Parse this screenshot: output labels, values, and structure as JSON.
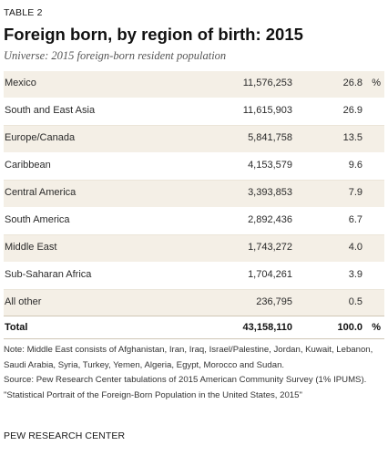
{
  "table_label": "TABLE 2",
  "title": "Foreign born, by region of birth: 2015",
  "subtitle": "Universe: 2015 foreign-born resident population",
  "percent_symbol": "%",
  "rows": [
    {
      "region": "Mexico",
      "count": "11,576,253",
      "percent": "26.8"
    },
    {
      "region": "South and East Asia",
      "count": "11,615,903",
      "percent": "26.9"
    },
    {
      "region": "Europe/Canada",
      "count": "5,841,758",
      "percent": "13.5"
    },
    {
      "region": "Caribbean",
      "count": "4,153,579",
      "percent": "9.6"
    },
    {
      "region": "Central America",
      "count": "3,393,853",
      "percent": "7.9"
    },
    {
      "region": "South America",
      "count": "2,892,436",
      "percent": "6.7"
    },
    {
      "region": "Middle East",
      "count": "1,743,272",
      "percent": "4.0"
    },
    {
      "region": "Sub-Saharan Africa",
      "count": "1,704,261",
      "percent": "3.9"
    },
    {
      "region": "All other",
      "count": "236,795",
      "percent": "0.5"
    }
  ],
  "total": {
    "region": "Total",
    "count": "43,158,110",
    "percent": "100.0"
  },
  "notes": {
    "note": "Note: Middle East consists of Afghanistan, Iran, Iraq, Israel/Palestine, Jordan, Kuwait, Lebanon, Saudi Arabia, Syria, Turkey, Yemen, Algeria, Egypt, Morocco and Sudan.",
    "source": "Source: Pew Research Center tabulations of 2015 American Community Survey (1% IPUMS).",
    "report": "\"Statistical Portrait of the Foreign-Born Population in the United States, 2015\""
  },
  "footer": "PEW RESEARCH CENTER"
}
